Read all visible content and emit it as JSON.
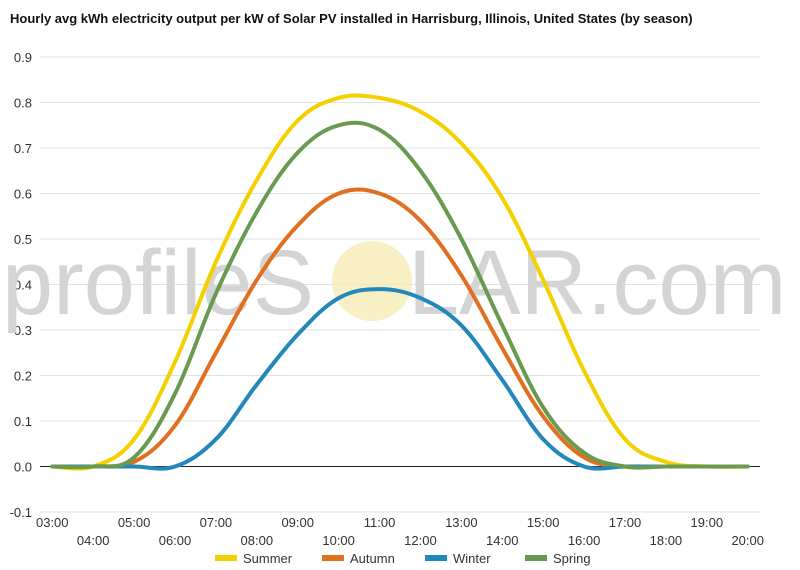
{
  "chart_data": {
    "type": "line",
    "title": "Hourly avg kWh electricity output per kW of Solar PV installed in Harrisburg, Illinois, United States (by season)",
    "xlabel": "",
    "ylabel": "",
    "x_ticks": [
      "03:00",
      "04:00",
      "05:00",
      "06:00",
      "07:00",
      "08:00",
      "09:00",
      "10:00",
      "11:00",
      "12:00",
      "13:00",
      "14:00",
      "15:00",
      "16:00",
      "17:00",
      "18:00",
      "19:00",
      "20:00"
    ],
    "x": [
      3,
      4,
      5,
      6,
      7,
      8,
      9,
      10,
      11,
      12,
      13,
      14,
      15,
      16,
      17,
      18,
      19,
      20
    ],
    "ylim": [
      -0.1,
      0.9
    ],
    "y_ticks": [
      "-0.1",
      "0.0",
      "0.1",
      "0.2",
      "0.3",
      "0.4",
      "0.5",
      "0.6",
      "0.7",
      "0.8",
      "0.9"
    ],
    "grid": true,
    "legend_position": "bottom",
    "series": [
      {
        "name": "Summer",
        "color": "#f5d000",
        "values": [
          0.0,
          0.0,
          0.06,
          0.23,
          0.45,
          0.63,
          0.76,
          0.81,
          0.81,
          0.78,
          0.71,
          0.59,
          0.41,
          0.21,
          0.06,
          0.01,
          0.0,
          0.0
        ]
      },
      {
        "name": "Autumn",
        "color": "#e07020",
        "values": [
          0.0,
          0.0,
          0.01,
          0.09,
          0.25,
          0.41,
          0.53,
          0.6,
          0.6,
          0.54,
          0.42,
          0.26,
          0.11,
          0.02,
          0.0,
          0.0,
          0.0,
          0.0
        ]
      },
      {
        "name": "Winter",
        "color": "#2288bb",
        "values": [
          0.0,
          0.0,
          0.0,
          0.0,
          0.06,
          0.18,
          0.29,
          0.37,
          0.39,
          0.37,
          0.31,
          0.19,
          0.06,
          0.0,
          0.0,
          0.0,
          0.0,
          0.0
        ]
      },
      {
        "name": "Spring",
        "color": "#6a9a50",
        "values": [
          0.0,
          0.0,
          0.02,
          0.16,
          0.38,
          0.56,
          0.69,
          0.75,
          0.74,
          0.65,
          0.5,
          0.31,
          0.13,
          0.03,
          0.0,
          0.0,
          0.0,
          0.0
        ]
      }
    ]
  },
  "watermark": {
    "text_left": "profileS",
    "text_right": "LAR.com",
    "sun_color": "#f7e9b0"
  }
}
